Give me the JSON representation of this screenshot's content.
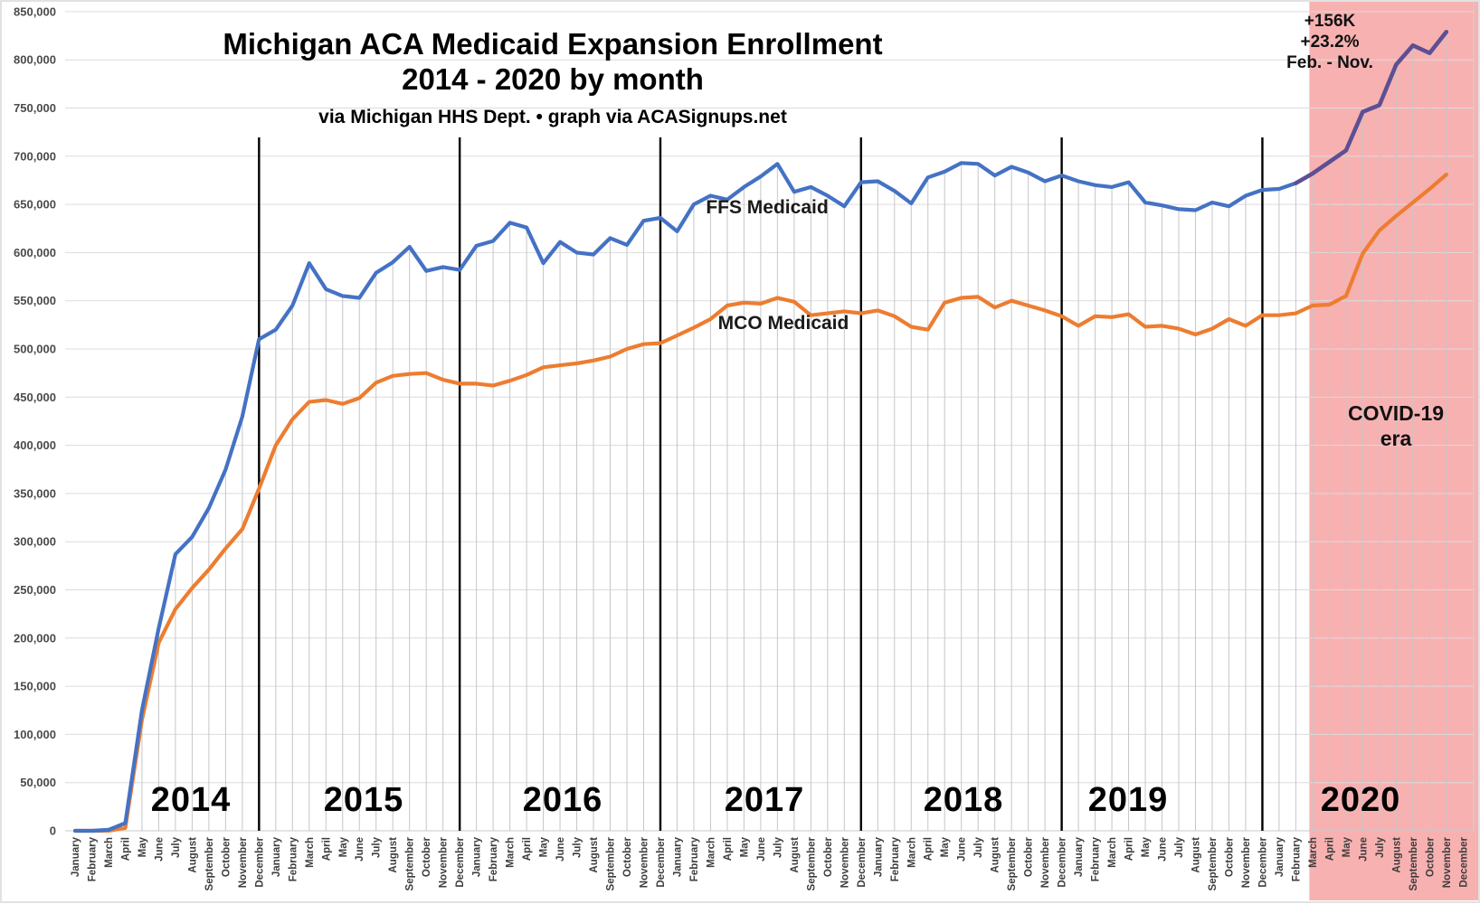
{
  "chart_data": {
    "type": "line",
    "title": "Michigan ACA Medicaid Expansion Enrollment",
    "title_line2": "2014 - 2020 by month",
    "subtitle": "via Michigan HHS Dept. • graph via ACASignups.net",
    "x_start": "January 2014",
    "x_end": "December 2020",
    "month_names": [
      "January",
      "February",
      "March",
      "April",
      "May",
      "June",
      "July",
      "August",
      "September",
      "October",
      "November",
      "December"
    ],
    "years": [
      "2014",
      "2015",
      "2016",
      "2017",
      "2018",
      "2019",
      "2020"
    ],
    "ylim": [
      0,
      850000
    ],
    "ytick_step": 50000,
    "ytick_labels": [
      "0",
      "50,000",
      "100,000",
      "150,000",
      "200,000",
      "250,000",
      "300,000",
      "350,000",
      "400,000",
      "450,000",
      "500,000",
      "550,000",
      "600,000",
      "650,000",
      "700,000",
      "750,000",
      "800,000",
      "850,000"
    ],
    "grid": "horizontal gridlines + vertical drop lines from FFS series to axis",
    "legend_position": "inline labels on plot",
    "year_separators_after": [
      "December 2014",
      "December 2015",
      "December 2016",
      "December 2017",
      "December 2018",
      "December 2019"
    ],
    "series": [
      {
        "name": "FFS Medicaid",
        "color": "#4472C4",
        "covid_color": "#5d4f93",
        "covid_color_from": "February 2020",
        "values": [
          0,
          0,
          1000,
          8000,
          125000,
          210000,
          287000,
          305000,
          335000,
          375000,
          430000,
          510000,
          520000,
          545000,
          589000,
          562000,
          555000,
          553000,
          579000,
          590000,
          606000,
          581000,
          585000,
          582000,
          607000,
          612000,
          631000,
          626000,
          589000,
          611000,
          600000,
          598000,
          615000,
          608000,
          633000,
          636000,
          622000,
          650000,
          659000,
          655000,
          668000,
          679000,
          692000,
          663000,
          668000,
          659000,
          648000,
          673000,
          674000,
          664000,
          651000,
          678000,
          684000,
          693000,
          692000,
          680000,
          689000,
          683000,
          674000,
          680000,
          674000,
          670000,
          668000,
          673000,
          652000,
          649000,
          645000,
          644000,
          652000,
          648000,
          659000,
          665000,
          666000,
          672000,
          682000,
          694000,
          706000,
          746000,
          753000,
          795000,
          815000,
          807000,
          829000,
          null
        ]
      },
      {
        "name": "MCO Medicaid",
        "color": "#ED7D31",
        "values": [
          0,
          0,
          0,
          3000,
          115000,
          195000,
          230000,
          252000,
          271000,
          293000,
          313000,
          355000,
          400000,
          427000,
          445000,
          447000,
          443000,
          449000,
          465000,
          472000,
          474000,
          475000,
          468000,
          464000,
          464000,
          462000,
          467000,
          473000,
          481000,
          483000,
          485000,
          488000,
          492000,
          500000,
          505000,
          506000,
          514000,
          522000,
          531000,
          545000,
          548000,
          547000,
          553000,
          549000,
          535000,
          537000,
          539000,
          537000,
          540000,
          534000,
          523000,
          520000,
          548000,
          553000,
          554000,
          543000,
          550000,
          545000,
          540000,
          534000,
          524000,
          534000,
          533000,
          536000,
          523000,
          524000,
          521000,
          515000,
          521000,
          531000,
          524000,
          535000,
          535000,
          537000,
          545000,
          546000,
          555000,
          599000,
          623000,
          638000,
          652000,
          666000,
          681000,
          null
        ]
      }
    ],
    "covid_era": {
      "label_line1": "COVID-19",
      "label_line2": "era",
      "start_month": "March 2020",
      "fill": "#f8b1b1"
    },
    "annotation": {
      "line1": "+156K",
      "line2": "+23.2%",
      "line3": "Feb. - Nov."
    }
  }
}
